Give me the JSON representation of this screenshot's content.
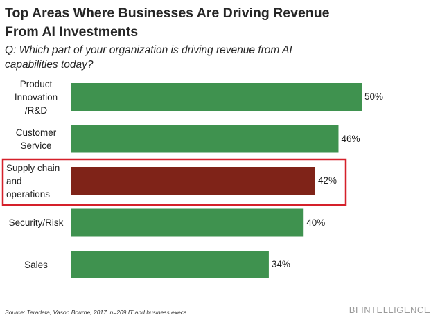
{
  "header": {
    "title": "Top Areas Where Businesses Are Driving Revenue From AI Investments",
    "subtitle": "Q: Which part of your organization is driving revenue from AI capabilities today?"
  },
  "footer": {
    "source": "Source: Teradata, Vason Bourne, 2017, n=209 IT and business execs",
    "brand": "BI INTELLIGENCE"
  },
  "colors": {
    "bar": "#3f924f",
    "highlight_bar": "#7f2318",
    "highlight_box": "#d5202a"
  },
  "chart_data": {
    "type": "bar",
    "orientation": "horizontal",
    "categories": [
      "Product Innovation /R&D",
      "Customer Service",
      "Supply chain and operations",
      "Security/Risk",
      "Sales"
    ],
    "category_lines": [
      [
        "Product",
        "Innovation",
        "/R&D"
      ],
      [
        "Customer",
        "Service"
      ],
      [
        "Supply chain",
        "and",
        "operations"
      ],
      [
        "Security/Risk"
      ],
      [
        "Sales"
      ]
    ],
    "values": [
      50,
      46,
      42,
      40,
      34
    ],
    "value_labels": [
      "50%",
      "46%",
      "42%",
      "40%",
      "34%"
    ],
    "highlighted_category": "Supply chain and operations",
    "unit": "%",
    "xlim": [
      0,
      50
    ],
    "grid": false,
    "legend": "none"
  }
}
